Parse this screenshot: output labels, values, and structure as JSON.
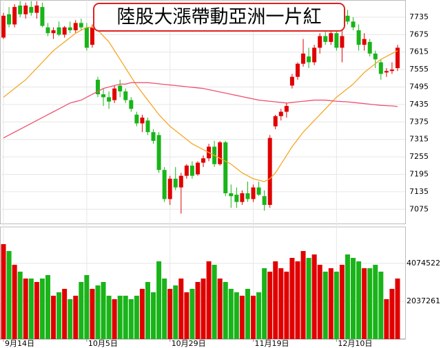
{
  "chart_data": {
    "type": "candlestick",
    "title": "陸股大漲帶動亞洲一片紅",
    "categories": [
      "9月14日",
      null,
      null,
      null,
      null,
      null,
      null,
      null,
      null,
      null,
      null,
      null,
      null,
      null,
      null,
      "10月5日",
      null,
      null,
      null,
      null,
      null,
      null,
      null,
      null,
      null,
      null,
      null,
      null,
      null,
      null,
      "10月29日",
      null,
      null,
      null,
      null,
      null,
      null,
      null,
      null,
      null,
      null,
      null,
      null,
      null,
      null,
      "11月19日",
      null,
      null,
      null,
      null,
      null,
      null,
      null,
      null,
      null,
      null,
      null,
      null,
      null,
      null,
      "12月10日",
      null,
      null,
      null,
      null,
      null,
      null,
      null,
      null,
      null,
      null,
      null
    ],
    "open": [
      7665,
      7745,
      7710,
      7775,
      7745,
      7770,
      7750,
      7770,
      7700,
      7680,
      7700,
      7675,
      7700,
      7690,
      7715,
      7700,
      7640,
      7520,
      7470,
      7460,
      7450,
      7500,
      7480,
      7450,
      7400,
      7370,
      7380,
      7340,
      7330,
      7210,
      7110,
      7180,
      7150,
      7190,
      7225,
      7195,
      7235,
      7250,
      7290,
      7230,
      7305,
      7130,
      7125,
      7100,
      7130,
      7110,
      7150,
      7120,
      7090,
      7360,
      7395,
      7410,
      7500,
      7530,
      7575,
      7600,
      7580,
      7630,
      7670,
      7650,
      7680,
      7630,
      7740,
      7720,
      7690,
      7640,
      7650,
      7610,
      7580,
      7545,
      7550,
      7560
    ],
    "high": [
      7750,
      7770,
      7780,
      7790,
      7785,
      7790,
      7790,
      7785,
      7715,
      7700,
      7720,
      7705,
      7720,
      7725,
      7730,
      7715,
      7710,
      7530,
      7490,
      7480,
      7500,
      7520,
      7490,
      7460,
      7410,
      7400,
      7390,
      7350,
      7340,
      7220,
      7190,
      7220,
      7200,
      7230,
      7240,
      7240,
      7260,
      7300,
      7310,
      7310,
      7310,
      7160,
      7150,
      7140,
      7170,
      7160,
      7170,
      7140,
      7330,
      7400,
      7420,
      7440,
      7540,
      7580,
      7660,
      7630,
      7640,
      7680,
      7690,
      7690,
      7690,
      7690,
      7760,
      7735,
      7710,
      7680,
      7660,
      7620,
      7590,
      7560,
      7580,
      7640
    ],
    "low": [
      7660,
      7700,
      7700,
      7735,
      7730,
      7740,
      7730,
      7700,
      7670,
      7660,
      7670,
      7665,
      7680,
      7680,
      7690,
      7620,
      7630,
      7460,
      7430,
      7420,
      7440,
      7460,
      7440,
      7410,
      7360,
      7340,
      7330,
      7300,
      7200,
      7100,
      7090,
      7140,
      7060,
      7180,
      7180,
      7190,
      7220,
      7240,
      7220,
      7225,
      7120,
      7080,
      7080,
      7090,
      7100,
      7100,
      7120,
      7070,
      7080,
      7350,
      7380,
      7390,
      7490,
      7520,
      7565,
      7560,
      7570,
      7610,
      7640,
      7640,
      7620,
      7580,
      7710,
      7690,
      7620,
      7620,
      7600,
      7560,
      7520,
      7530,
      7540,
      7550
    ],
    "close": [
      7740,
      7710,
      7770,
      7745,
      7775,
      7750,
      7775,
      7705,
      7680,
      7690,
      7675,
      7700,
      7690,
      7715,
      7700,
      7630,
      7700,
      7470,
      7460,
      7445,
      7490,
      7480,
      7450,
      7420,
      7370,
      7390,
      7340,
      7310,
      7210,
      7110,
      7180,
      7150,
      7190,
      7225,
      7190,
      7235,
      7250,
      7290,
      7230,
      7305,
      7130,
      7120,
      7100,
      7130,
      7110,
      7150,
      7125,
      7090,
      7320,
      7395,
      7410,
      7430,
      7530,
      7575,
      7610,
      7580,
      7630,
      7670,
      7650,
      7680,
      7630,
      7670,
      7720,
      7700,
      7640,
      7660,
      7610,
      7590,
      7540,
      7550,
      7555,
      7630
    ],
    "volume": [
      5112000,
      4741000,
      4000000,
      3630000,
      3260000,
      3260000,
      3074000,
      3260000,
      3445000,
      2334000,
      2519000,
      2704000,
      2148000,
      2334000,
      3074000,
      3445000,
      2704000,
      2889000,
      3074000,
      2334000,
      2148000,
      2334000,
      2334000,
      2148000,
      2334000,
      2704000,
      3074000,
      2519000,
      4186000,
      3260000,
      2704000,
      2889000,
      3260000,
      2519000,
      2704000,
      3074000,
      3260000,
      4186000,
      4000000,
      3260000,
      3074000,
      2704000,
      2519000,
      2334000,
      2704000,
      2334000,
      2519000,
      3815000,
      3630000,
      4186000,
      3815000,
      3630000,
      4371000,
      4186000,
      4741000,
      4371000,
      4556000,
      4000000,
      3630000,
      3815000,
      3630000,
      4000000,
      4556000,
      4371000,
      4186000,
      3815000,
      3815000,
      4000000,
      3630000,
      2148000,
      2704000,
      3260000
    ],
    "up_color": "#e00000",
    "down_color": "#19b419",
    "lines": [
      {
        "color": "#f5a623",
        "values": [
          7460,
          7475,
          7490,
          7505,
          7520,
          7540,
          7560,
          7580,
          7600,
          7620,
          7635,
          7650,
          7665,
          7680,
          7690,
          7700,
          7700,
          7690,
          7670,
          7650,
          7620,
          7590,
          7560,
          7530,
          7500,
          7475,
          7450,
          7425,
          7400,
          7380,
          7360,
          7345,
          7330,
          7315,
          7300,
          7290,
          7280,
          7270,
          7260,
          7250,
          7240,
          7230,
          7215,
          7200,
          7190,
          7180,
          7175,
          7170,
          7180,
          7200,
          7230,
          7260,
          7290,
          7315,
          7340,
          7360,
          7380,
          7400,
          7420,
          7440,
          7460,
          7475,
          7490,
          7505,
          7525,
          7545,
          7560,
          7575,
          7590,
          7600,
          7610,
          7620
        ]
      },
      {
        "color": "#f0506e",
        "values": [
          7320,
          7330,
          7340,
          7350,
          7360,
          7370,
          7380,
          7390,
          7400,
          7410,
          7420,
          7430,
          7440,
          7445,
          7450,
          7460,
          7470,
          7480,
          7490,
          7495,
          7500,
          7505,
          7505,
          7510,
          7510,
          7510,
          7510,
          7508,
          7506,
          7504,
          7502,
          7500,
          7498,
          7496,
          7494,
          7492,
          7490,
          7486,
          7482,
          7478,
          7474,
          7470,
          7466,
          7462,
          7458,
          7454,
          7450,
          7448,
          7446,
          7444,
          7442,
          7440,
          7442,
          7444,
          7446,
          7448,
          7450,
          7450,
          7450,
          7448,
          7446,
          7445,
          7444,
          7442,
          7440,
          7438,
          7436,
          7434,
          7432,
          7431,
          7430,
          7428
        ]
      }
    ],
    "ylim": [
      7026,
      7794
    ],
    "yticks": [
      7075,
      7135,
      7195,
      7255,
      7315,
      7375,
      7435,
      7495,
      7555,
      7615,
      7675,
      7735
    ],
    "volume_ylim": [
      0,
      6037000
    ],
    "volume_yticks": [
      {
        "value": 2037261,
        "label": "2037261."
      },
      {
        "value": 4074522,
        "label": "4074522."
      }
    ],
    "grid": true
  }
}
